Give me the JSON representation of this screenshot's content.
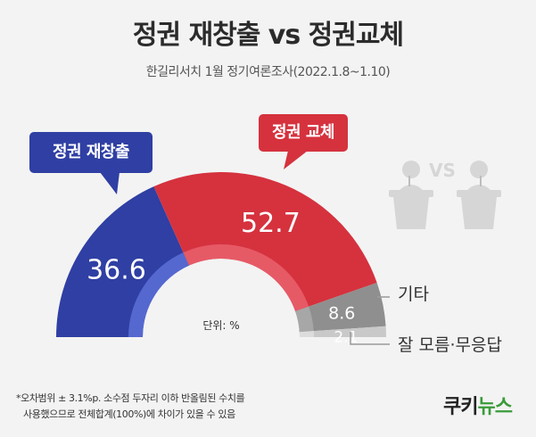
{
  "title": "정권 재창출 vs 정권교체",
  "subtitle": "한길리서치 1월 정기여론조사(2022.1.8~1.10)",
  "unit_label": "단위: %",
  "footnote": {
    "line1": "*오차범위 ± 3.1%p. 소수점 두자리 이하 반올림된 수치를",
    "line2": "사용했으므로 전체합계(100%)에 차이가 있을 수 있음"
  },
  "logo": {
    "part1": "쿠키",
    "part2": "뉴스"
  },
  "colors": {
    "blue": "#2f3fa3",
    "red": "#d5323e",
    "gray": "#8f8f8f",
    "lightgray": "#c9c9c9",
    "background": "#f3f3f3"
  },
  "icons": [
    "podium-speaker-icon",
    "vs-icon",
    "podium-speaker-icon"
  ],
  "vs_text": "VS",
  "chart_data": {
    "type": "pie",
    "subtype": "semi-donut",
    "categories": [
      "정권 재창출",
      "정권 교체",
      "기타",
      "잘 모름·무응답"
    ],
    "values": [
      36.6,
      52.7,
      8.6,
      2.1
    ],
    "callouts": [
      "정권 재창출",
      "정권 교체"
    ],
    "outside_labels": [
      "기타",
      "잘 모름·무응답"
    ]
  }
}
